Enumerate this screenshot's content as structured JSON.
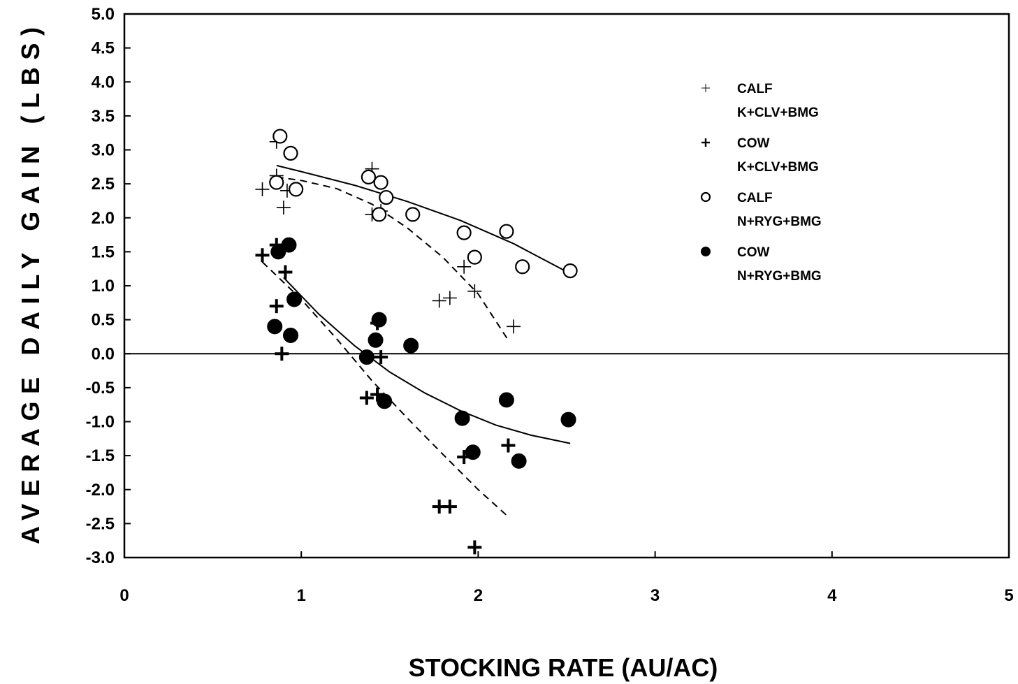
{
  "chart_data": {
    "type": "scatter",
    "xlabel": "STOCKING RATE (AU/AC)",
    "ylabel": "AVERAGE DAILY GAIN (LBS)",
    "xlim": [
      0,
      5
    ],
    "ylim": [
      -3.0,
      5.0
    ],
    "x_ticks": [
      "0",
      "1",
      "2",
      "3",
      "4",
      "5"
    ],
    "y_ticks": [
      "5.0",
      "4.5",
      "4.0",
      "3.5",
      "3.0",
      "2.5",
      "2.0",
      "1.5",
      "1.0",
      "0.5",
      "0.0",
      "-0.5",
      "-1.0",
      "-1.5",
      "-2.0",
      "-2.5",
      "-3.0"
    ],
    "grid": false,
    "legend_position": "top-right",
    "reference_line_y": 0,
    "series": [
      {
        "line1": "CALF",
        "line2": "K+CLV+BMG",
        "marker": "plus-thin",
        "points": [
          [
            0.78,
            2.42
          ],
          [
            0.86,
            3.12
          ],
          [
            0.86,
            2.62
          ],
          [
            0.9,
            2.15
          ],
          [
            0.92,
            2.4
          ],
          [
            1.4,
            2.72
          ],
          [
            1.4,
            2.05
          ],
          [
            1.45,
            2.1
          ],
          [
            1.92,
            1.28
          ],
          [
            1.98,
            0.92
          ],
          [
            1.78,
            0.78
          ],
          [
            1.84,
            0.82
          ],
          [
            2.2,
            0.4
          ]
        ],
        "trend": {
          "style": "dashed",
          "x": [
            0.86,
            1.0,
            1.2,
            1.4,
            1.6,
            1.8,
            2.0,
            2.17
          ],
          "y": [
            2.6,
            2.55,
            2.43,
            2.2,
            1.85,
            1.42,
            0.88,
            0.2
          ]
        }
      },
      {
        "line1": "COW",
        "line2": "K+CLV+BMG",
        "marker": "plus-bold",
        "points": [
          [
            0.78,
            1.45
          ],
          [
            0.86,
            1.6
          ],
          [
            0.91,
            1.2
          ],
          [
            0.86,
            0.7
          ],
          [
            0.89,
            0.0
          ],
          [
            1.37,
            -0.65
          ],
          [
            1.43,
            -0.6
          ],
          [
            1.45,
            -0.05
          ],
          [
            1.43,
            0.45
          ],
          [
            1.92,
            -1.52
          ],
          [
            2.17,
            -1.35
          ],
          [
            1.78,
            -2.25
          ],
          [
            1.84,
            -2.25
          ],
          [
            1.98,
            -2.85
          ]
        ],
        "trend": {
          "style": "dashed",
          "x": [
            0.78,
            1.0,
            1.2,
            1.4,
            1.6,
            1.8,
            2.0,
            2.17
          ],
          "y": [
            1.35,
            0.8,
            0.22,
            -0.4,
            -0.95,
            -1.48,
            -2.0,
            -2.4
          ]
        }
      },
      {
        "line1": "CALF",
        "line2": "N+RYG+BMG",
        "marker": "circle-open",
        "points": [
          [
            0.88,
            3.2
          ],
          [
            0.94,
            2.95
          ],
          [
            0.86,
            2.52
          ],
          [
            0.97,
            2.42
          ],
          [
            1.38,
            2.6
          ],
          [
            1.45,
            2.52
          ],
          [
            1.48,
            2.3
          ],
          [
            1.44,
            2.05
          ],
          [
            1.63,
            2.05
          ],
          [
            1.92,
            1.78
          ],
          [
            1.98,
            1.42
          ],
          [
            2.16,
            1.8
          ],
          [
            2.25,
            1.28
          ],
          [
            2.52,
            1.22
          ]
        ],
        "trend": {
          "style": "solid",
          "x": [
            0.86,
            1.0,
            1.3,
            1.6,
            1.9,
            2.2,
            2.52
          ],
          "y": [
            2.77,
            2.68,
            2.48,
            2.24,
            1.96,
            1.62,
            1.18
          ]
        }
      },
      {
        "line1": "COW",
        "line2": "N+RYG+BMG",
        "marker": "circle-filled",
        "points": [
          [
            0.93,
            1.6
          ],
          [
            0.87,
            1.5
          ],
          [
            0.96,
            0.8
          ],
          [
            0.85,
            0.4
          ],
          [
            0.94,
            0.27
          ],
          [
            1.44,
            0.5
          ],
          [
            1.42,
            0.2
          ],
          [
            1.62,
            0.12
          ],
          [
            1.37,
            -0.05
          ],
          [
            1.47,
            -0.7
          ],
          [
            1.91,
            -0.95
          ],
          [
            1.97,
            -1.45
          ],
          [
            2.16,
            -0.68
          ],
          [
            2.23,
            -1.58
          ],
          [
            2.51,
            -0.97
          ]
        ],
        "trend": {
          "style": "solid",
          "x": [
            0.9,
            1.1,
            1.3,
            1.5,
            1.7,
            1.9,
            2.1,
            2.3,
            2.52
          ],
          "y": [
            1.12,
            0.58,
            0.12,
            -0.27,
            -0.58,
            -0.84,
            -1.05,
            -1.2,
            -1.32
          ]
        }
      }
    ]
  }
}
